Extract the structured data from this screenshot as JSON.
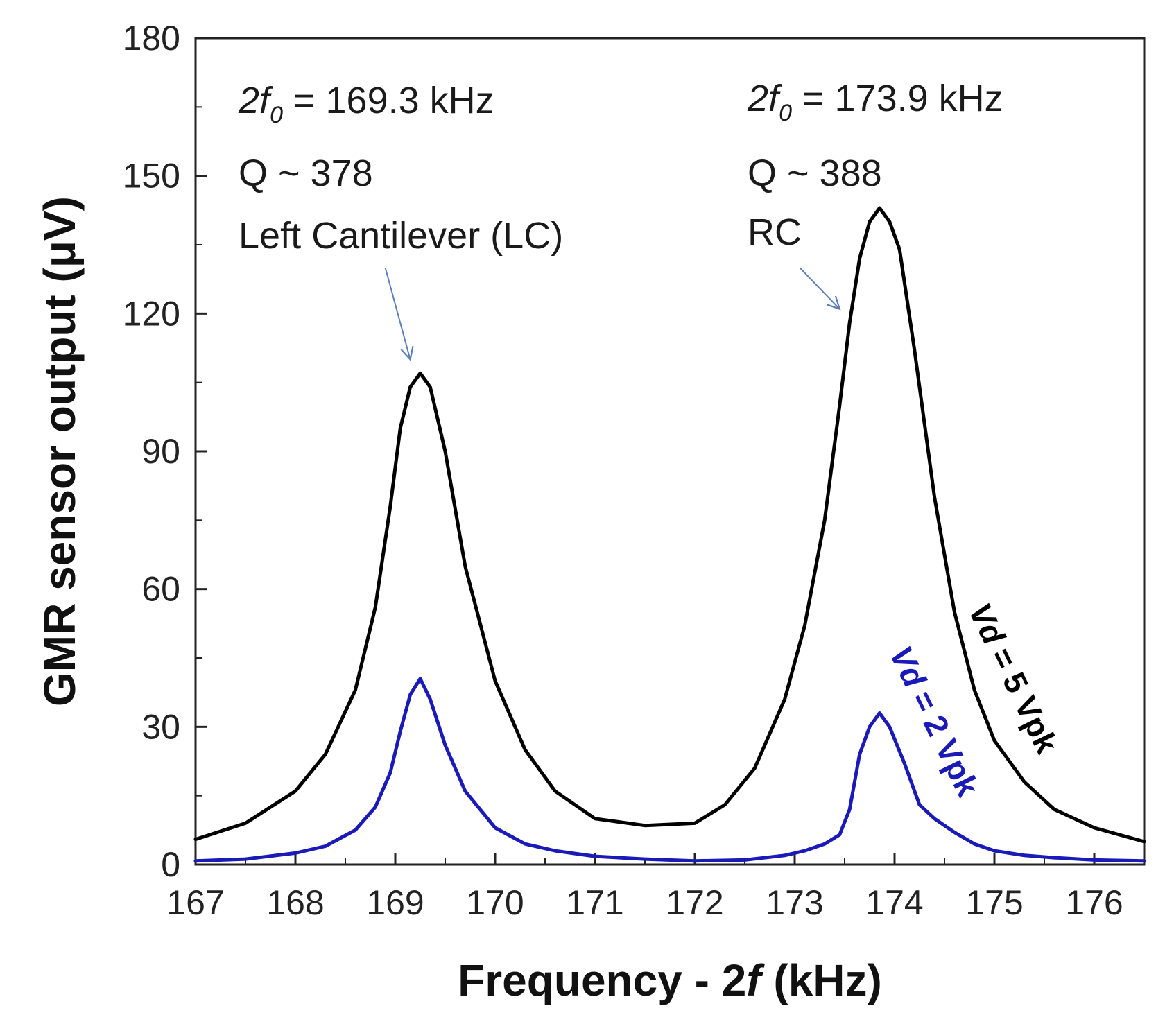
{
  "chart_data": {
    "type": "line",
    "title": "",
    "xlabel_parts": [
      "Frequency - ",
      "2",
      "f",
      " (kHz)"
    ],
    "ylabel": "GMR sensor output (μV)",
    "xlim": [
      167,
      176.5
    ],
    "ylim": [
      0,
      180
    ],
    "xticks": [
      167,
      168,
      169,
      170,
      171,
      172,
      173,
      174,
      175,
      176
    ],
    "yticks": [
      0,
      30,
      60,
      90,
      120,
      150,
      180
    ],
    "grid": false,
    "series": [
      {
        "name": "Vd = 5 Vpk",
        "label_parts": [
          "Vd",
          " = 5 Vpk"
        ],
        "color": "#000000",
        "x": [
          167.0,
          167.5,
          168.0,
          168.3,
          168.6,
          168.8,
          168.95,
          169.05,
          169.15,
          169.25,
          169.35,
          169.5,
          169.7,
          170.0,
          170.3,
          170.6,
          171.0,
          171.5,
          172.0,
          172.3,
          172.6,
          172.9,
          173.1,
          173.3,
          173.45,
          173.55,
          173.65,
          173.75,
          173.85,
          173.95,
          174.05,
          174.2,
          174.4,
          174.6,
          174.8,
          175.0,
          175.3,
          175.6,
          176.0,
          176.5
        ],
        "y": [
          5.5,
          9,
          16,
          24,
          38,
          56,
          78,
          95,
          104,
          107,
          104,
          90,
          65,
          40,
          25,
          16,
          10,
          8.5,
          9,
          13,
          21,
          36,
          52,
          75,
          100,
          118,
          132,
          140,
          143,
          140,
          134,
          112,
          80,
          55,
          38,
          27,
          18,
          12,
          8,
          5
        ]
      },
      {
        "name": "Vd = 2 Vpk",
        "label_parts": [
          "Vd",
          " = 2 Vpk"
        ],
        "color": "#1a1ab8",
        "x": [
          167.0,
          167.5,
          168.0,
          168.3,
          168.6,
          168.8,
          168.95,
          169.05,
          169.15,
          169.25,
          169.35,
          169.5,
          169.7,
          170.0,
          170.3,
          170.6,
          171.0,
          171.5,
          172.0,
          172.5,
          172.9,
          173.1,
          173.3,
          173.45,
          173.55,
          173.65,
          173.75,
          173.85,
          173.95,
          174.1,
          174.25,
          174.4,
          174.6,
          174.8,
          175.0,
          175.3,
          175.6,
          176.0,
          176.5
        ],
        "y": [
          0.8,
          1.2,
          2.5,
          4,
          7.5,
          12.5,
          20,
          29,
          37,
          40.5,
          36,
          26,
          16,
          8,
          4.5,
          3,
          1.8,
          1.2,
          0.8,
          1,
          2,
          3,
          4.5,
          6.5,
          12,
          24,
          30,
          33,
          30,
          22,
          13,
          10,
          7,
          4.5,
          3,
          2,
          1.5,
          1,
          0.8
        ]
      }
    ],
    "annotations": [
      {
        "id": "lc",
        "freq_prefix": "2",
        "freq_f": "f",
        "freq_sub": "0",
        "freq_value": " = 169.3 kHz",
        "q": "Q ~ 378",
        "name": "Left Cantilever (LC)"
      },
      {
        "id": "rc",
        "freq_prefix": "2",
        "freq_f": "f",
        "freq_sub": "0",
        "freq_value": " = 173.9 kHz",
        "q": "Q ~ 388",
        "name": "RC"
      }
    ],
    "arrow_color": "#5b7fb8",
    "arrows": [
      {
        "target": "lc",
        "from": [
          168.9,
          130
        ],
        "to": [
          169.15,
          110
        ]
      },
      {
        "target": "rc",
        "from": [
          173.05,
          130
        ],
        "to": [
          173.45,
          121
        ]
      }
    ]
  }
}
